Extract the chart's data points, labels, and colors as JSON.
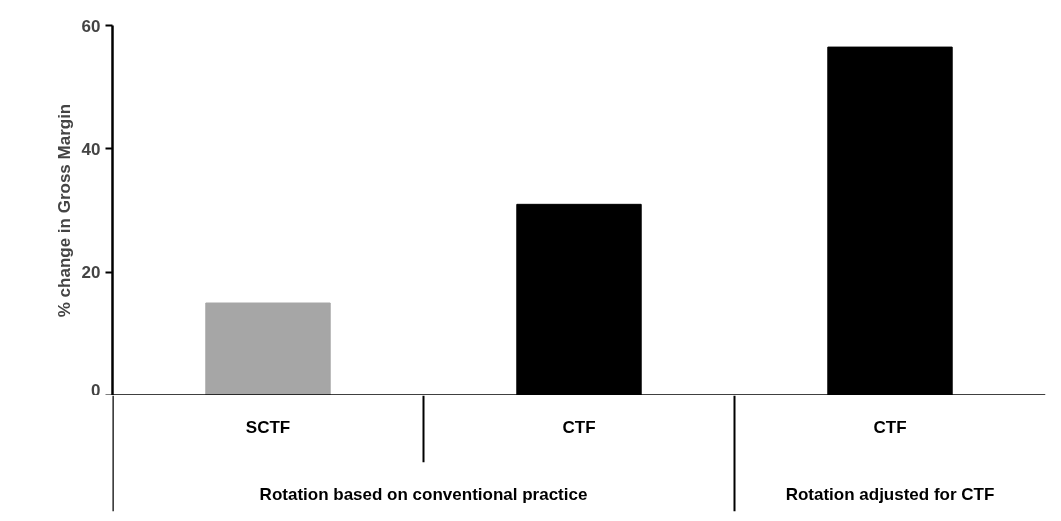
{
  "chart_data": {
    "type": "bar",
    "ylabel": "% change in Gross Margin",
    "categories": [
      "SCTF",
      "CTF",
      "CTF"
    ],
    "values": [
      15,
      31,
      56.5
    ],
    "colors": [
      "#a6a6a6",
      "#000000",
      "#000000"
    ],
    "ylim": [
      0,
      60
    ],
    "yticks": [
      0,
      20,
      40,
      60
    ],
    "annotations": [
      "Rotation based on conventional practice",
      "Rotation adjusted for CTF"
    ]
  }
}
